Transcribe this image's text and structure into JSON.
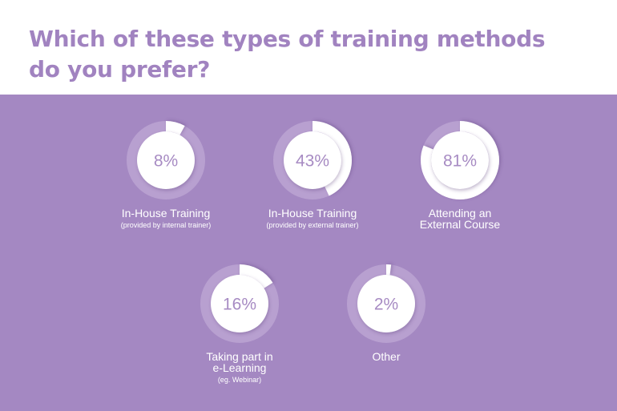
{
  "title_line1": "Which of these types of training methods",
  "title_line2": "do you prefer?",
  "colors": {
    "title": "#a183c0",
    "panel": "#a488c2",
    "track": "#b8a0d0",
    "fill": "#ffffff",
    "value_text": "#a78bc3"
  },
  "chart_data": {
    "type": "donut",
    "unit": "%",
    "items": [
      {
        "value": 8,
        "label_lines": [
          "In-House Training"
        ],
        "sub": "(provided by internal trainer)"
      },
      {
        "value": 43,
        "label_lines": [
          "In-House Training"
        ],
        "sub": "(provided by external  trainer)"
      },
      {
        "value": 81,
        "label_lines": [
          "Attending an",
          "External Course"
        ],
        "sub": ""
      },
      {
        "value": 16,
        "label_lines": [
          "Taking part in",
          "e-Learning"
        ],
        "sub": "(eg. Webinar)"
      },
      {
        "value": 2,
        "label_lines": [
          "Other"
        ],
        "sub": ""
      }
    ]
  }
}
